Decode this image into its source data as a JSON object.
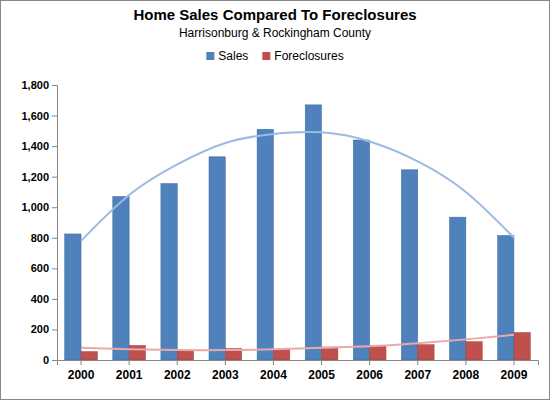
{
  "chart_data": {
    "type": "bar",
    "title": "Home Sales Compared To Foreclosures",
    "subtitle": "Harrisonburg & Rockingham County",
    "categories": [
      "2000",
      "2001",
      "2002",
      "2003",
      "2004",
      "2005",
      "2006",
      "2007",
      "2008",
      "2009"
    ],
    "series": [
      {
        "name": "Sales",
        "color": "#4f81bd",
        "values": [
          825,
          1070,
          1155,
          1330,
          1510,
          1670,
          1440,
          1245,
          935,
          815
        ]
      },
      {
        "name": "Foreclosures",
        "color": "#c0504d",
        "values": [
          55,
          95,
          60,
          75,
          70,
          85,
          95,
          100,
          120,
          180
        ]
      },
      {
        "type": "line",
        "color": "#9bbbe0",
        "values": [
          780,
          1080,
          1280,
          1420,
          1480,
          1490,
          1430,
          1300,
          1100,
          800
        ]
      },
      {
        "type": "line",
        "color": "#eaa9a8",
        "values": [
          80,
          70,
          65,
          65,
          70,
          80,
          90,
          110,
          135,
          165
        ]
      }
    ],
    "ylim": [
      0,
      1800
    ],
    "yticks": [
      0,
      200,
      400,
      600,
      800,
      {
        "value": 1000,
        "label": "1,000"
      },
      {
        "value": 1200,
        "label": "1,200"
      },
      {
        "value": 1400,
        "label": "1,400"
      },
      {
        "value": 1600,
        "label": "1,600"
      },
      {
        "value": 1800,
        "label": "1,800"
      }
    ],
    "grid": false,
    "legend": "top"
  }
}
